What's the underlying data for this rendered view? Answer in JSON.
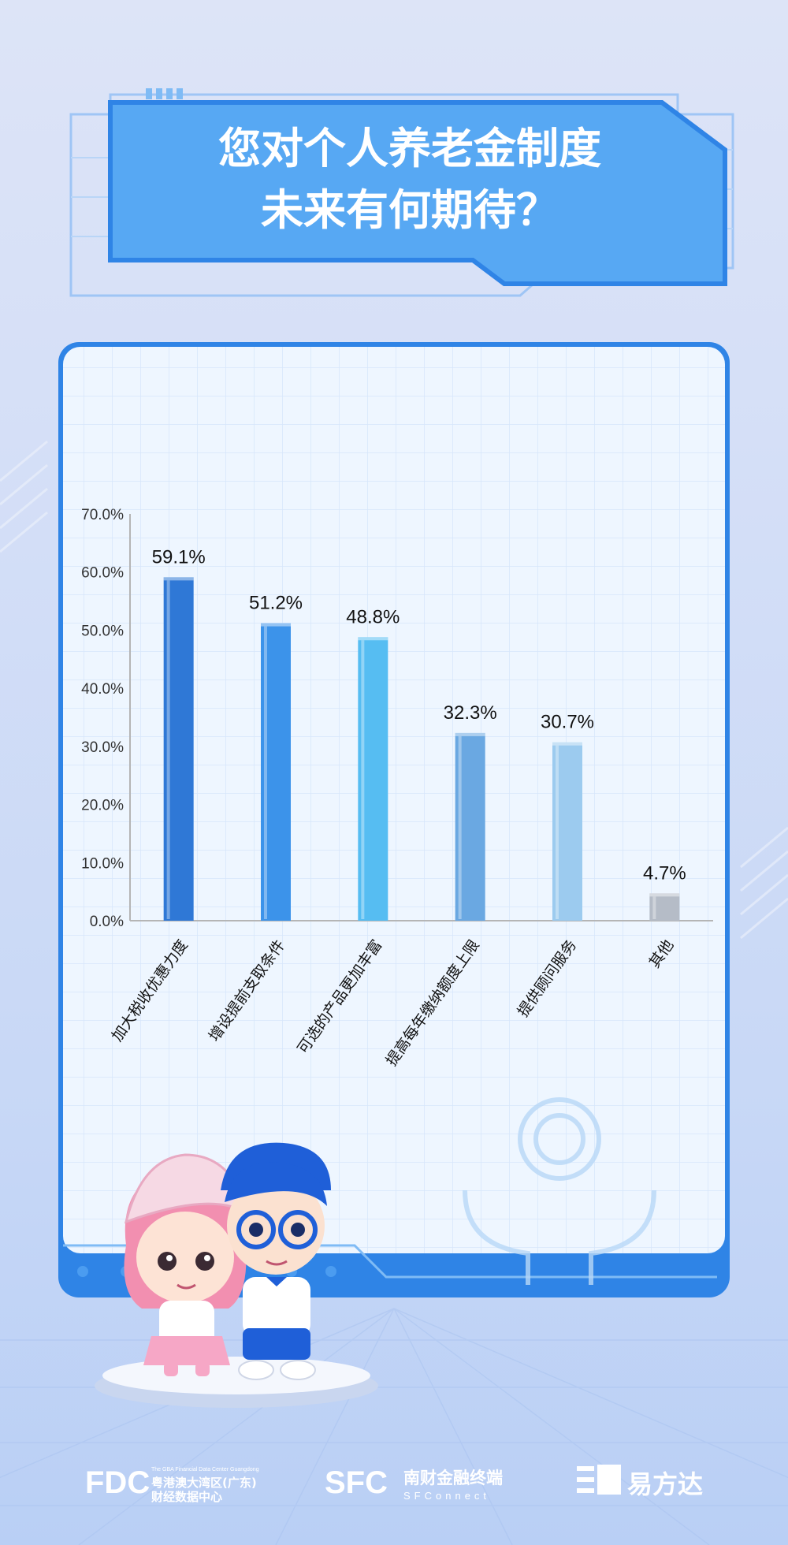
{
  "title": {
    "line1": "您对个人养老金制度",
    "line2": "未来有何期待？"
  },
  "chart_data": {
    "type": "bar",
    "title": "您对个人养老金制度未来有何期待？",
    "categories": [
      "加大税收优惠力度",
      "增设提前支取条件",
      "可选的产品更加丰富",
      "提高每年缴纳额度上限",
      "提供顾问服务",
      "其他"
    ],
    "values": [
      59.1,
      51.2,
      48.8,
      32.3,
      30.7,
      4.7
    ],
    "value_labels": [
      "59.1%",
      "51.2%",
      "48.8%",
      "32.3%",
      "30.7%",
      "4.7%"
    ],
    "y_ticks": [
      "0.0%",
      "10.0%",
      "20.0%",
      "30.0%",
      "40.0%",
      "50.0%",
      "60.0%",
      "70.0%"
    ],
    "ylim": [
      0,
      70
    ],
    "bar_colors": [
      "#2f78d6",
      "#3c93ea",
      "#56bdf2",
      "#6aa8e2",
      "#9ccbef",
      "#b5bcc7"
    ],
    "xlabel": "",
    "ylabel": ""
  },
  "footer": {
    "fdc_mark": "FDC",
    "fdc_en": "The GBA Financial Data Center Guangdong",
    "fdc_cn1": "粤港澳大湾区(广东)",
    "fdc_cn2": "财经数据中心",
    "sfc_mark": "SFC",
    "sfc_cn": "南财金融终端",
    "sfc_en": "SFConnect",
    "efangda": "易方达"
  }
}
